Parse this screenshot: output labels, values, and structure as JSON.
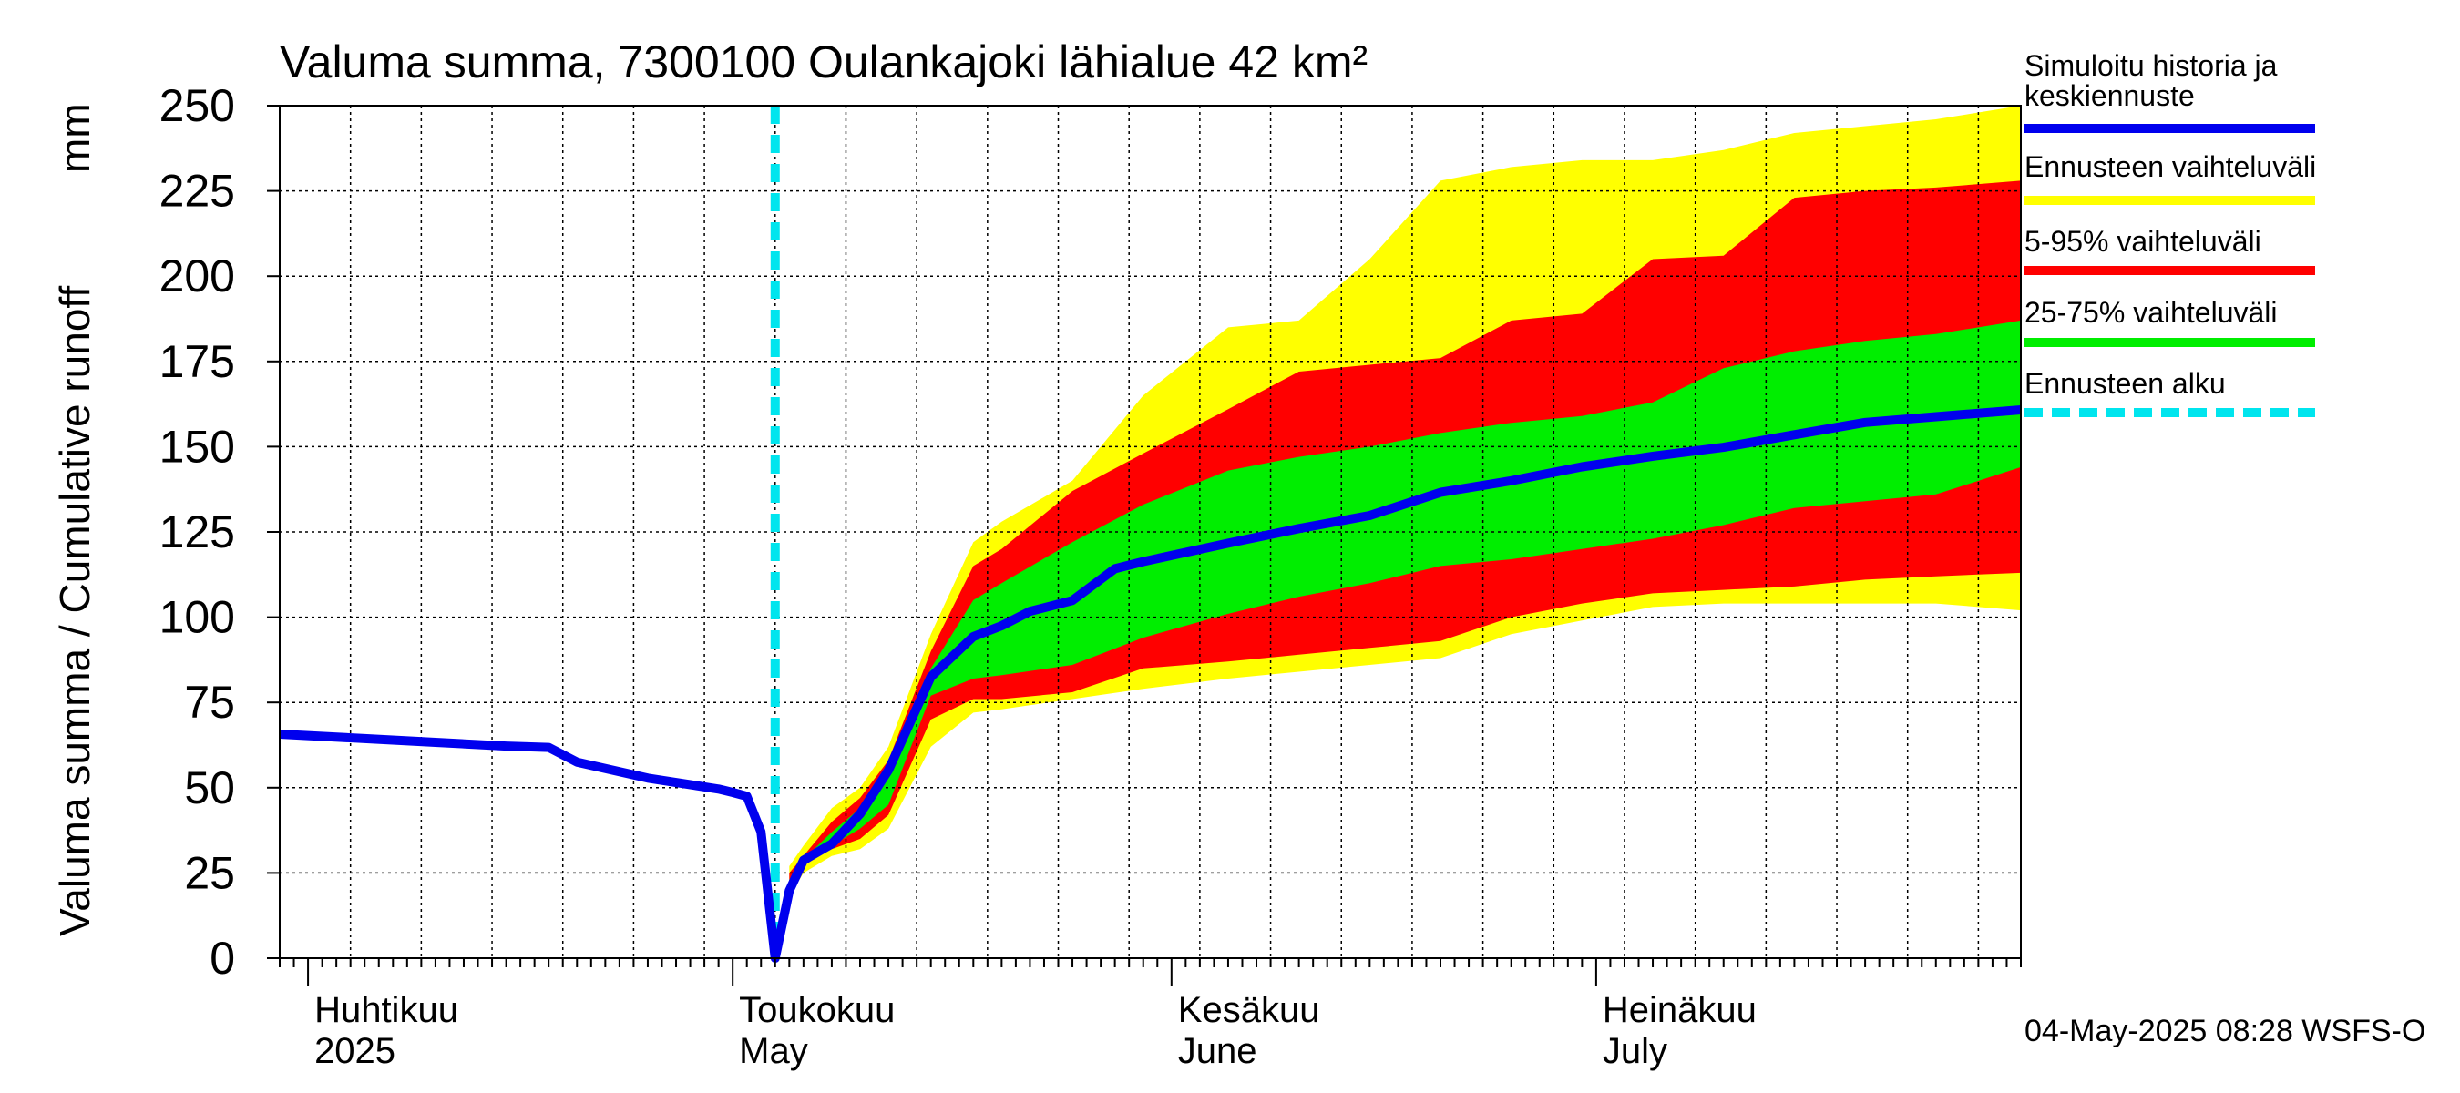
{
  "chart_data": {
    "type": "area",
    "title": "Valuma summa, 7300100 Oulankajoki lähialue 42 km²",
    "ylabel": "Valuma summa / Cumulative runoff",
    "yunit": "mm",
    "ylim": [
      0,
      250
    ],
    "y_ticks": [
      0,
      25,
      50,
      75,
      100,
      125,
      150,
      175,
      200,
      225,
      250
    ],
    "x_range": [
      "2025-03-30",
      "2025-07-31"
    ],
    "x_month_labels": [
      {
        "date": "2025-04-01",
        "line1": "Huhtikuu",
        "line2": "2025"
      },
      {
        "date": "2025-05-01",
        "line1": "Toukokuu",
        "line2": "May"
      },
      {
        "date": "2025-06-01",
        "line1": "Kesäkuu",
        "line2": "June"
      },
      {
        "date": "2025-07-01",
        "line1": "Heinäkuu",
        "line2": "July"
      }
    ],
    "grid": true,
    "legend_position": "right",
    "forecast_start": "2025-05-04",
    "footer": "04-May-2025 08:28 WSFS-O",
    "legend": [
      {
        "key": "history",
        "label_line1": "Simuloitu historia ja",
        "label_line2": "keskiennuste",
        "color": "#0000ee",
        "style": "line"
      },
      {
        "key": "range_full",
        "label_line1": "Ennusteen vaihteluväli",
        "color": "#ffff00",
        "style": "band"
      },
      {
        "key": "range_5_95",
        "label_line1": "5-95% vaihteluväli",
        "color": "#ff0000",
        "style": "band"
      },
      {
        "key": "range_25_75",
        "label_line1": "25-75% vaihteluväli",
        "color": "#00ee00",
        "style": "band"
      },
      {
        "key": "forecast_start",
        "label_line1": "Ennusteen alku",
        "color": "#00e5ee",
        "style": "dashed"
      }
    ],
    "x_band": [
      "2025-05-05",
      "2025-05-06",
      "2025-05-08",
      "2025-05-10",
      "2025-05-12",
      "2025-05-15",
      "2025-05-18",
      "2025-05-20",
      "2025-05-25",
      "2025-05-30",
      "2025-06-05",
      "2025-06-10",
      "2025-06-15",
      "2025-06-20",
      "2025-06-25",
      "2025-06-30",
      "2025-07-05",
      "2025-07-10",
      "2025-07-15",
      "2025-07-20",
      "2025-07-25",
      "2025-07-31"
    ],
    "series": [
      {
        "name": "Ennusteen vaihteluväli",
        "key": "range_full",
        "upper": [
          27,
          33,
          44,
          50,
          62,
          95,
          122,
          128,
          140,
          165,
          185,
          187,
          205,
          228,
          232,
          234,
          234,
          237,
          242,
          244,
          246,
          250
        ],
        "lower": [
          18,
          25,
          30,
          32,
          38,
          62,
          72,
          73,
          76,
          79,
          82,
          84,
          86,
          88,
          95,
          99,
          103,
          104,
          104,
          104,
          104,
          102
        ]
      },
      {
        "name": "5-95% vaihteluväli",
        "key": "range_5_95",
        "upper": [
          25,
          30,
          40,
          47,
          58,
          90,
          115,
          120,
          137,
          148,
          161,
          172,
          174,
          176,
          187,
          189,
          205,
          206,
          223,
          225,
          226,
          228
        ],
        "lower": [
          20,
          28,
          32,
          35,
          42,
          70,
          76,
          76,
          78,
          85,
          87,
          89,
          91,
          93,
          100,
          104,
          107,
          108,
          109,
          111,
          112,
          113
        ]
      },
      {
        "name": "25-75% vaihteluväli",
        "key": "range_25_75",
        "upper": [
          23,
          29,
          37,
          44,
          53,
          85,
          105,
          110,
          122,
          133,
          143,
          147,
          150,
          154,
          157,
          159,
          163,
          173,
          178,
          181,
          183,
          187
        ],
        "lower": [
          21,
          28,
          33,
          38,
          45,
          77,
          82,
          83,
          86,
          94,
          101,
          106,
          110,
          115,
          117,
          120,
          123,
          127,
          132,
          134,
          136,
          144
        ]
      },
      {
        "name": "Simuloitu historia ja keskiennuste",
        "key": "history",
        "x": [
          "2025-03-30",
          "2025-04-05",
          "2025-04-10",
          "2025-04-15",
          "2025-04-18",
          "2025-04-20",
          "2025-04-25",
          "2025-04-30",
          "2025-05-01",
          "2025-05-02",
          "2025-05-03",
          "2025-05-04",
          "2025-05-05",
          "2025-05-06",
          "2025-05-08",
          "2025-05-10",
          "2025-05-12",
          "2025-05-15",
          "2025-05-18",
          "2025-05-20",
          "2025-05-22",
          "2025-05-25",
          "2025-05-28",
          "2025-05-30",
          "2025-06-05",
          "2025-06-10",
          "2025-06-15",
          "2025-06-20",
          "2025-06-25",
          "2025-06-30",
          "2025-07-05",
          "2025-07-10",
          "2025-07-15",
          "2025-07-20",
          "2025-07-25",
          "2025-07-31"
        ],
        "y": [
          65.7,
          64.4,
          63.3,
          62.2,
          61.8,
          57.5,
          52.8,
          49.6,
          48.6,
          47.5,
          37.1,
          0,
          19.8,
          28.7,
          33.5,
          42.3,
          55.1,
          82.5,
          94.3,
          97.5,
          101.7,
          104.9,
          114.2,
          116.3,
          121.7,
          126.0,
          129.8,
          136.6,
          140.0,
          144.1,
          147.2,
          149.8,
          153.5,
          157.1,
          158.8,
          160.8
        ]
      }
    ]
  }
}
